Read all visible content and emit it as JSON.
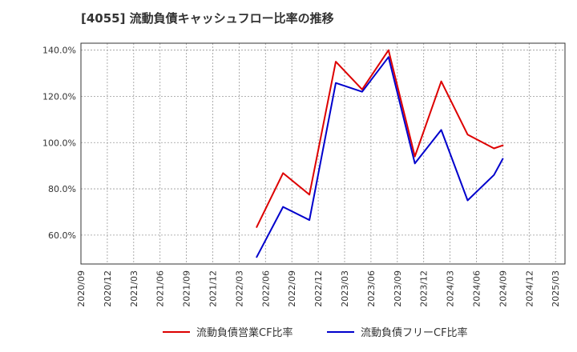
{
  "chart_data": {
    "type": "line",
    "title": "[4055]  流動負債キャッシュフロー比率の推移",
    "xlabel": "",
    "ylabel": "",
    "ylim": [
      47.5,
      143
    ],
    "yticks": [
      60,
      80,
      100,
      120,
      140
    ],
    "ytick_labels": [
      "60.0%",
      "80.0%",
      "100.0%",
      "120.0%",
      "140.0%"
    ],
    "xticks": [
      "2020/09",
      "2020/12",
      "2021/03",
      "2021/06",
      "2021/09",
      "2021/12",
      "2022/03",
      "2022/06",
      "2022/09",
      "2022/12",
      "2023/03",
      "2023/06",
      "2023/09",
      "2023/12",
      "2024/03",
      "2024/06",
      "2024/09",
      "2024/12",
      "2025/03"
    ],
    "grid": true,
    "legend_position": "bottom-center",
    "series": [
      {
        "name": "流動負債営業CF比率",
        "color": "#dd0000",
        "x": [
          "2022/05",
          "2022/08",
          "2022/11",
          "2023/02",
          "2023/05",
          "2023/08",
          "2023/11",
          "2024/02",
          "2024/05",
          "2024/08",
          "2024/09"
        ],
        "values": [
          63.5,
          86.8,
          77.5,
          135.0,
          123.0,
          140.0,
          94.0,
          126.5,
          103.5,
          97.5,
          98.8
        ]
      },
      {
        "name": "流動負債フリーCF比率",
        "color": "#0000cc",
        "x": [
          "2022/05",
          "2022/08",
          "2022/11",
          "2023/02",
          "2023/05",
          "2023/08",
          "2023/11",
          "2024/02",
          "2024/05",
          "2024/08",
          "2024/09"
        ],
        "values": [
          50.5,
          72.2,
          66.5,
          125.8,
          122.0,
          137.0,
          91.0,
          105.5,
          75.0,
          86.0,
          93.0
        ]
      }
    ]
  }
}
